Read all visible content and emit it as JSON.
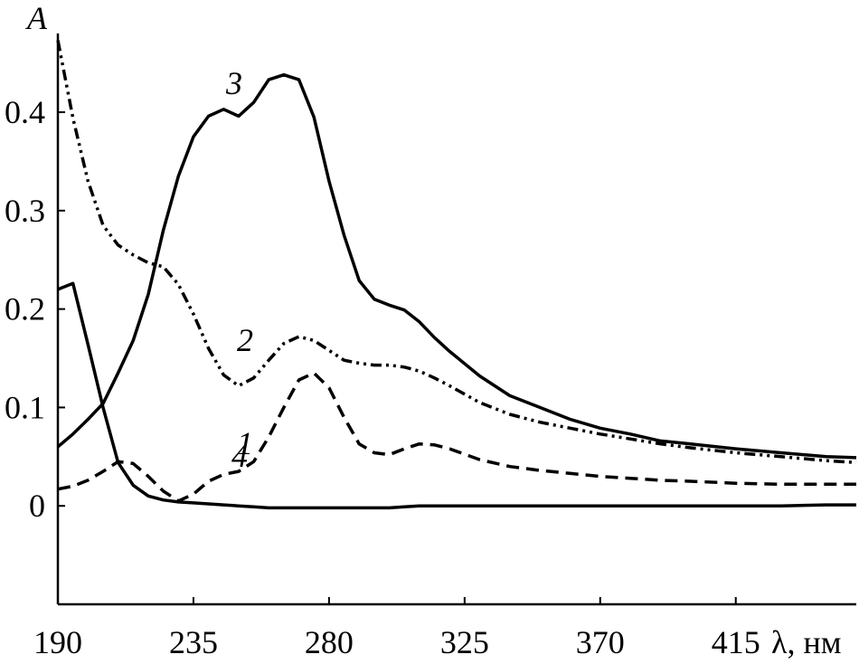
{
  "chart_data": {
    "type": "line",
    "ylabel": "A",
    "xlabel": "λ, нм",
    "x": [
      190,
      195,
      200,
      205,
      210,
      215,
      220,
      225,
      230,
      235,
      240,
      245,
      250,
      255,
      260,
      265,
      270,
      275,
      280,
      285,
      290,
      295,
      300,
      305,
      310,
      315,
      320,
      330,
      340,
      350,
      360,
      370,
      380,
      390,
      400,
      415,
      430,
      445,
      455
    ],
    "xlim": [
      190,
      455
    ],
    "xticks": [
      190,
      235,
      280,
      325,
      370,
      415
    ],
    "ylim": [
      -0.1,
      0.48
    ],
    "yticks": [
      0,
      0.1,
      0.2,
      0.3,
      0.4
    ],
    "series": [
      {
        "name": "1",
        "color": "#000000",
        "style": "dashed",
        "values": [
          0.017,
          0.02,
          0.026,
          0.035,
          0.045,
          0.043,
          0.03,
          0.015,
          0.005,
          0.012,
          0.025,
          0.032,
          0.035,
          0.045,
          0.07,
          0.1,
          0.128,
          0.135,
          0.12,
          0.09,
          0.063,
          0.054,
          0.052,
          0.058,
          0.063,
          0.062,
          0.058,
          0.047,
          0.04,
          0.036,
          0.033,
          0.03,
          0.028,
          0.026,
          0.025,
          0.023,
          0.022,
          0.022,
          0.022
        ]
      },
      {
        "name": "2",
        "color": "#000000",
        "style": "dash-dot-dot",
        "values": [
          0.473,
          0.394,
          0.33,
          0.285,
          0.265,
          0.255,
          0.247,
          0.243,
          0.225,
          0.195,
          0.16,
          0.133,
          0.122,
          0.13,
          0.148,
          0.165,
          0.172,
          0.168,
          0.158,
          0.148,
          0.145,
          0.143,
          0.143,
          0.141,
          0.137,
          0.13,
          0.122,
          0.105,
          0.093,
          0.085,
          0.079,
          0.073,
          0.068,
          0.063,
          0.059,
          0.054,
          0.05,
          0.046,
          0.044
        ]
      },
      {
        "name": "3",
        "color": "#000000",
        "style": "solid",
        "values": [
          0.06,
          0.073,
          0.088,
          0.104,
          0.135,
          0.168,
          0.215,
          0.28,
          0.335,
          0.375,
          0.396,
          0.403,
          0.396,
          0.41,
          0.433,
          0.438,
          0.433,
          0.395,
          0.33,
          0.275,
          0.229,
          0.21,
          0.204,
          0.199,
          0.187,
          0.171,
          0.157,
          0.132,
          0.112,
          0.1,
          0.088,
          0.079,
          0.073,
          0.066,
          0.063,
          0.058,
          0.054,
          0.05,
          0.049
        ]
      },
      {
        "name": "4",
        "color": "#000000",
        "style": "solid",
        "values": [
          0.22,
          0.226,
          0.164,
          0.1,
          0.044,
          0.021,
          0.01,
          0.006,
          0.004,
          0.003,
          0.002,
          0.001,
          0,
          -0.001,
          -0.002,
          -0.002,
          -0.002,
          -0.002,
          -0.002,
          -0.002,
          -0.002,
          -0.002,
          -0.002,
          -0.001,
          0,
          0,
          0,
          0,
          0,
          0,
          0,
          0,
          0,
          0,
          0,
          0,
          0,
          0.001,
          0.001
        ]
      }
    ]
  }
}
